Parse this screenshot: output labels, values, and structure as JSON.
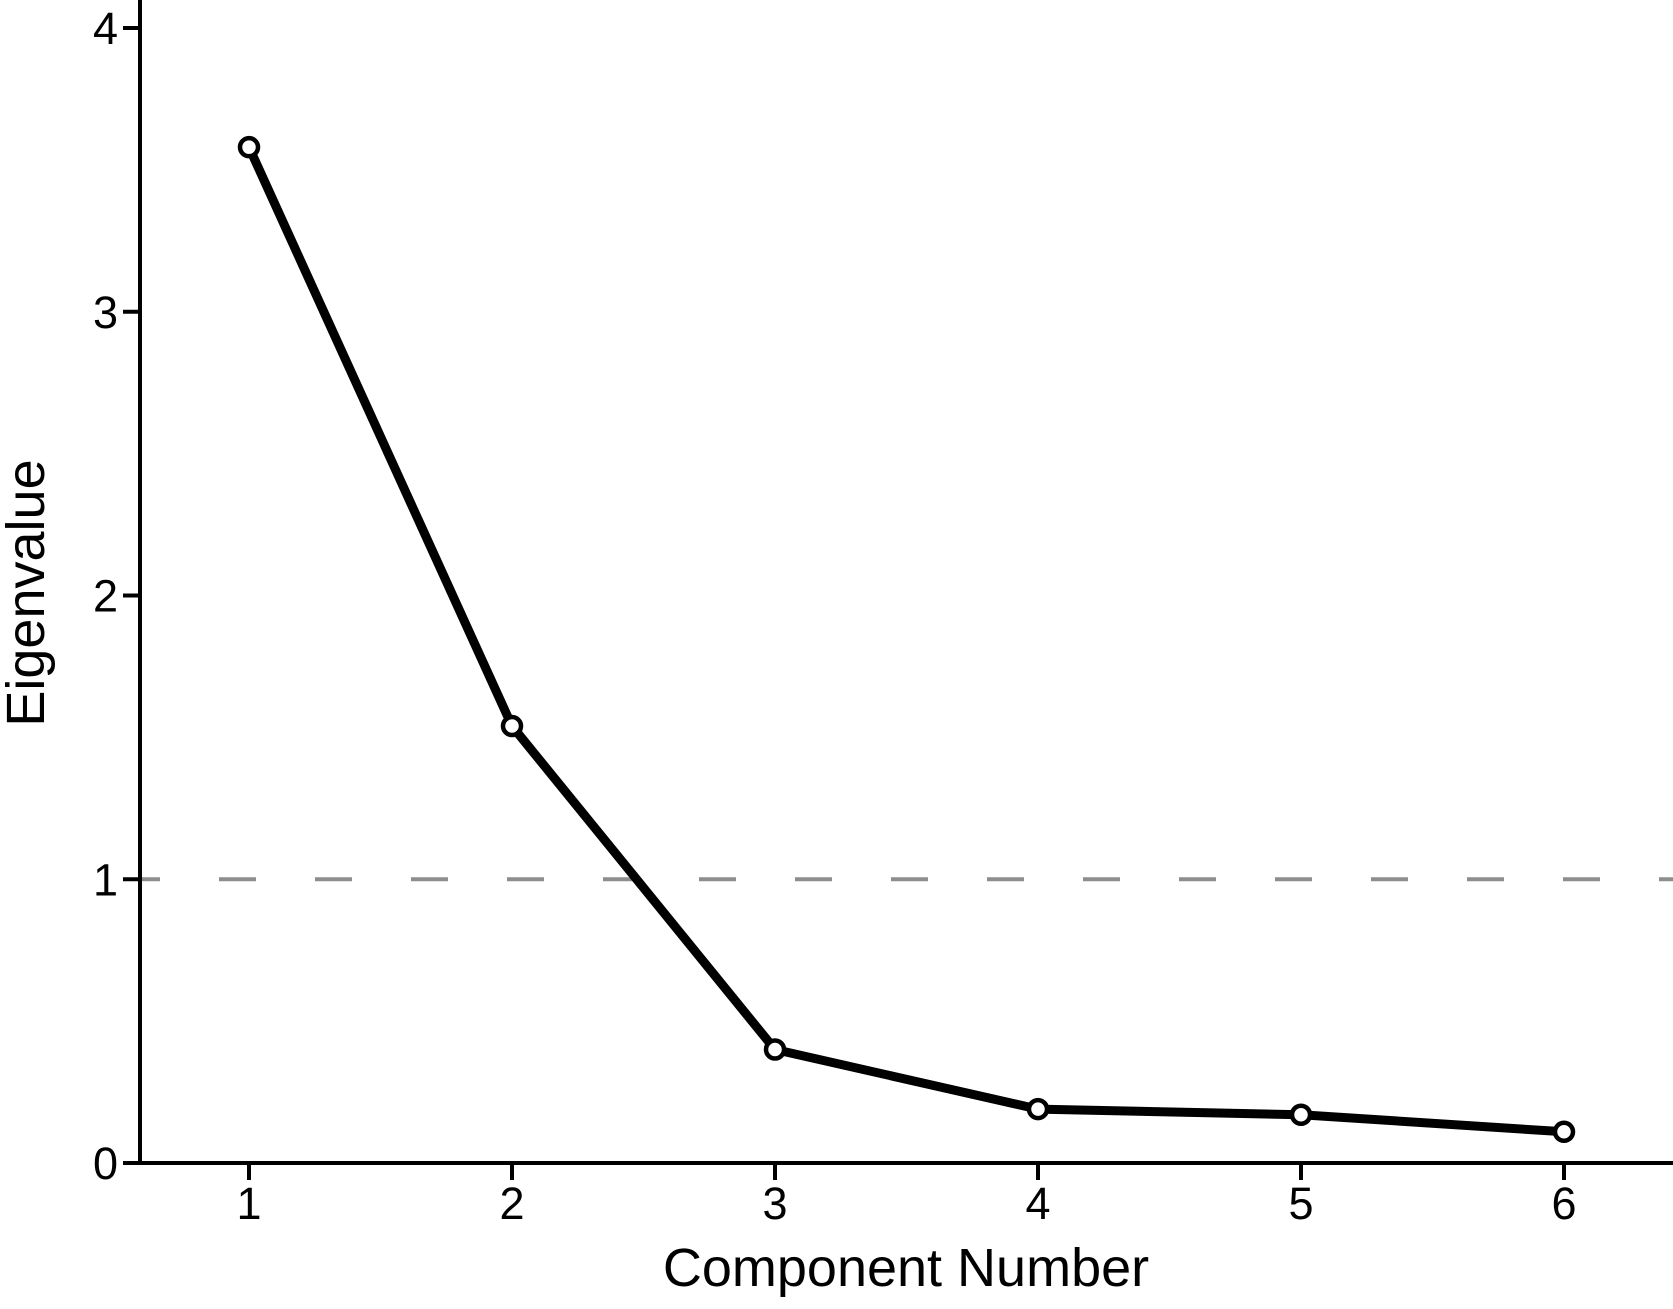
{
  "figure": {
    "background": "#ffffff"
  },
  "chart_data": {
    "type": "line",
    "xlabel": "Component Number",
    "ylabel": "Eigenvalue",
    "x": [
      1,
      2,
      3,
      4,
      5,
      6
    ],
    "series": [
      {
        "name": "eigenvalue",
        "values": [
          3.58,
          1.54,
          0.4,
          0.19,
          0.17,
          0.11
        ]
      }
    ],
    "xticks": [
      1,
      2,
      3,
      4,
      5,
      6
    ],
    "yticks": [
      0,
      1,
      2,
      3,
      4
    ],
    "xlim": [
      0.6,
      6.4
    ],
    "ylim": [
      0,
      4.1
    ],
    "grid": false,
    "legend": false,
    "reference_line": {
      "y": 1,
      "style": "dashed",
      "color": "#8e8e8e"
    },
    "line": {
      "color": "#000000"
    },
    "marker": {
      "shape": "circle",
      "fill": "#ffffff",
      "stroke": "#000000"
    }
  }
}
